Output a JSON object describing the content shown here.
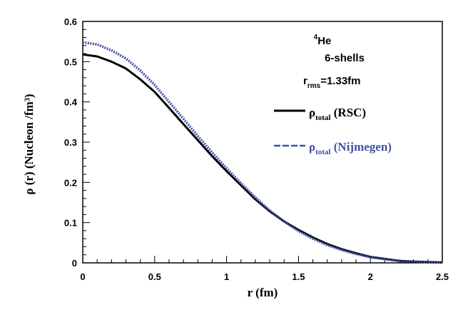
{
  "chart_data": {
    "type": "line",
    "title": "",
    "xlabel": "r (fm)",
    "ylabel": "ρ (r) (Nucleon /fm³)",
    "xlim": [
      0,
      2.5
    ],
    "ylim": [
      0,
      0.6
    ],
    "x_ticks": [
      0,
      0.5,
      1,
      1.5,
      2,
      2.5
    ],
    "x_tick_labels": [
      "0",
      "0.5",
      "1",
      "1.5",
      "2",
      "2.5"
    ],
    "y_ticks": [
      0,
      0.1,
      0.2,
      0.3,
      0.4,
      0.5,
      0.6
    ],
    "y_tick_labels": [
      "0",
      "0.1",
      "0.2",
      "0.3",
      "0.4",
      "0.5",
      "0.6"
    ],
    "grid": false,
    "annotations": {
      "nucleus_mass": "4",
      "nucleus_symbol": "He",
      "shells": "6-shells",
      "rrms_main": "r",
      "rrms_sub": "rms",
      "rrms_value": "=1.33fm"
    },
    "legend_position": "right",
    "series": [
      {
        "name": "ρ_total (RSC)",
        "label_main": "ρ",
        "label_sub": "total",
        "label_suffix": " (RSC)",
        "color": "#000000",
        "style": "solid",
        "x": [
          0,
          0.1,
          0.2,
          0.3,
          0.4,
          0.5,
          0.6,
          0.7,
          0.8,
          0.9,
          1.0,
          1.1,
          1.2,
          1.3,
          1.4,
          1.5,
          1.6,
          1.7,
          1.8,
          1.9,
          2.0,
          2.1,
          2.2,
          2.3,
          2.4,
          2.5
        ],
        "values": [
          0.518,
          0.513,
          0.5,
          0.483,
          0.456,
          0.425,
          0.385,
          0.345,
          0.305,
          0.265,
          0.228,
          0.193,
          0.158,
          0.128,
          0.103,
          0.082,
          0.063,
          0.047,
          0.034,
          0.024,
          0.015,
          0.01,
          0.005,
          0.003,
          0.002,
          0.001
        ]
      },
      {
        "name": "ρ_total (Nijmegen)",
        "label_main": "ρ",
        "label_sub": "total",
        "label_suffix": " (Nijmegen)",
        "color": "#3f51a8",
        "style": "dashed",
        "x": [
          0,
          0.1,
          0.2,
          0.3,
          0.4,
          0.5,
          0.6,
          0.7,
          0.8,
          0.9,
          1.0,
          1.1,
          1.2,
          1.3,
          1.4,
          1.5,
          1.6,
          1.7,
          1.8,
          1.9,
          2.0,
          2.1,
          2.2,
          2.3,
          2.4,
          2.5
        ],
        "values": [
          0.548,
          0.543,
          0.528,
          0.508,
          0.478,
          0.442,
          0.4,
          0.358,
          0.315,
          0.274,
          0.235,
          0.198,
          0.163,
          0.13,
          0.103,
          0.079,
          0.06,
          0.044,
          0.032,
          0.022,
          0.014,
          0.009,
          0.005,
          0.003,
          0.002,
          0.001
        ]
      }
    ]
  }
}
